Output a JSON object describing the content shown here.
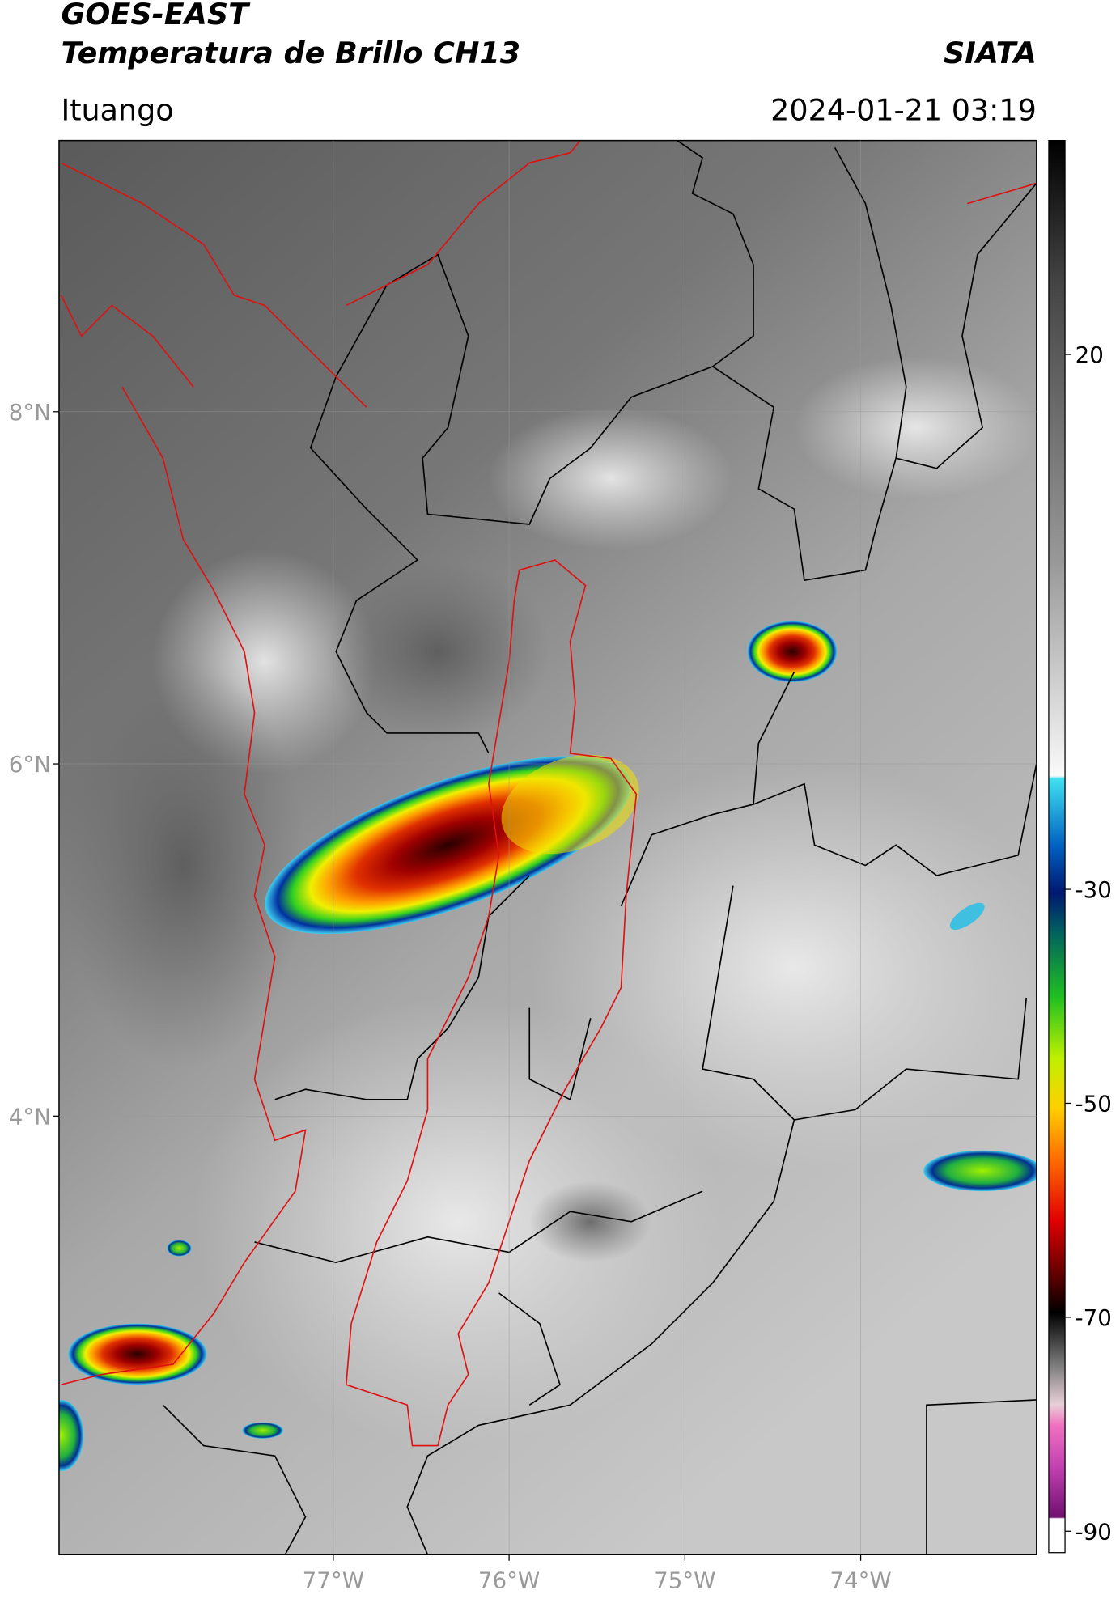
{
  "header": {
    "title": "GOES-EAST",
    "subtitle": "Temperatura de Brillo CH13",
    "source": "SIATA",
    "location": "Ituango",
    "timestamp": "2024-01-21 03:19"
  },
  "map": {
    "lon_range": [
      -78.56,
      -73.0
    ],
    "lat_range": [
      1.51,
      9.54
    ],
    "lat_ticks": [
      {
        "value": 8,
        "label": "8°N"
      },
      {
        "value": 6,
        "label": "6°N"
      },
      {
        "value": 4,
        "label": "4°N"
      }
    ],
    "lon_ticks": [
      {
        "value": -77,
        "label": "77°W"
      },
      {
        "value": -76,
        "label": "76°W"
      },
      {
        "value": -75,
        "label": "75°W"
      },
      {
        "value": -74,
        "label": "74°W"
      }
    ]
  },
  "colorbar": {
    "range": [
      -92,
      40
    ],
    "ticks": [
      20,
      -30,
      -50,
      -70,
      -90
    ]
  }
}
